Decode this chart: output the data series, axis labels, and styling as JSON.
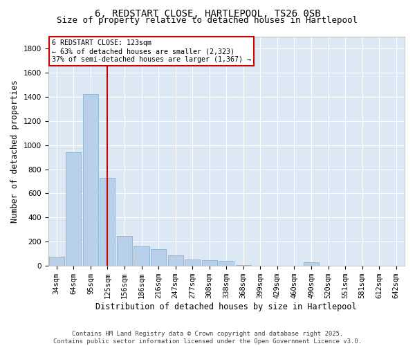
{
  "title": "6, REDSTART CLOSE, HARTLEPOOL, TS26 0SB",
  "subtitle": "Size of property relative to detached houses in Hartlepool",
  "xlabel": "Distribution of detached houses by size in Hartlepool",
  "ylabel": "Number of detached properties",
  "categories": [
    "34sqm",
    "64sqm",
    "95sqm",
    "125sqm",
    "156sqm",
    "186sqm",
    "216sqm",
    "247sqm",
    "277sqm",
    "308sqm",
    "338sqm",
    "368sqm",
    "399sqm",
    "429sqm",
    "460sqm",
    "490sqm",
    "520sqm",
    "551sqm",
    "581sqm",
    "612sqm",
    "642sqm"
  ],
  "values": [
    75,
    940,
    1420,
    730,
    245,
    160,
    140,
    90,
    55,
    45,
    40,
    5,
    0,
    0,
    0,
    30,
    0,
    0,
    0,
    0,
    0
  ],
  "bar_color": "#b8d0ea",
  "bar_edge_color": "#7aaace",
  "vline_x_index": 3,
  "vline_color": "#cc0000",
  "annotation_text": "6 REDSTART CLOSE: 123sqm\n← 63% of detached houses are smaller (2,323)\n37% of semi-detached houses are larger (1,367) →",
  "ylim": [
    0,
    1900
  ],
  "yticks": [
    0,
    200,
    400,
    600,
    800,
    1000,
    1200,
    1400,
    1600,
    1800
  ],
  "background_color": "#dce9f5",
  "footer_text": "Contains HM Land Registry data © Crown copyright and database right 2025.\nContains public sector information licensed under the Open Government Licence v3.0.",
  "title_fontsize": 10,
  "subtitle_fontsize": 9,
  "axis_label_fontsize": 8.5,
  "tick_fontsize": 7.5,
  "footer_fontsize": 6.5
}
